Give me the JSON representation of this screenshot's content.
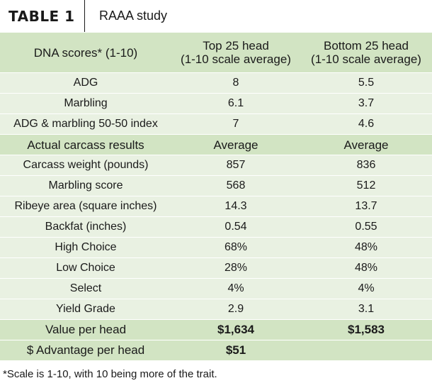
{
  "title": {
    "label": "TABLE 1",
    "subtitle": "RAAA study"
  },
  "dna_header": [
    "DNA scores* (1-10)",
    "Top 25 head\n(1-10 scale average)",
    "Bottom 25 head\n(1-10 scale average)"
  ],
  "dna_rows": [
    [
      "ADG",
      "8",
      "5.5"
    ],
    [
      "Marbling",
      "6.1",
      "3.7"
    ],
    [
      "ADG & marbling 50-50 index",
      "7",
      "4.6"
    ]
  ],
  "carcass_header": [
    "Actual carcass results",
    "Average",
    "Average"
  ],
  "carcass_rows": [
    [
      "Carcass weight (pounds)",
      "857",
      "836"
    ],
    [
      "Marbling score",
      "568",
      "512"
    ],
    [
      "Ribeye area (square inches)",
      "14.3",
      "13.7"
    ],
    [
      "Backfat (inches)",
      "0.54",
      "0.55"
    ],
    [
      "High Choice",
      "68%",
      "48%"
    ],
    [
      "Low Choice",
      "28%",
      "48%"
    ],
    [
      "Select",
      "4%",
      "4%"
    ],
    [
      "Yield Grade",
      "2.9",
      "3.1"
    ]
  ],
  "value_row": [
    "Value per head",
    "$1,634",
    "$1,583"
  ],
  "advantage_row": [
    "$ Advantage per head",
    "$51",
    ""
  ],
  "footnote": "*Scale is 1-10, with 10 being more of the trait."
}
